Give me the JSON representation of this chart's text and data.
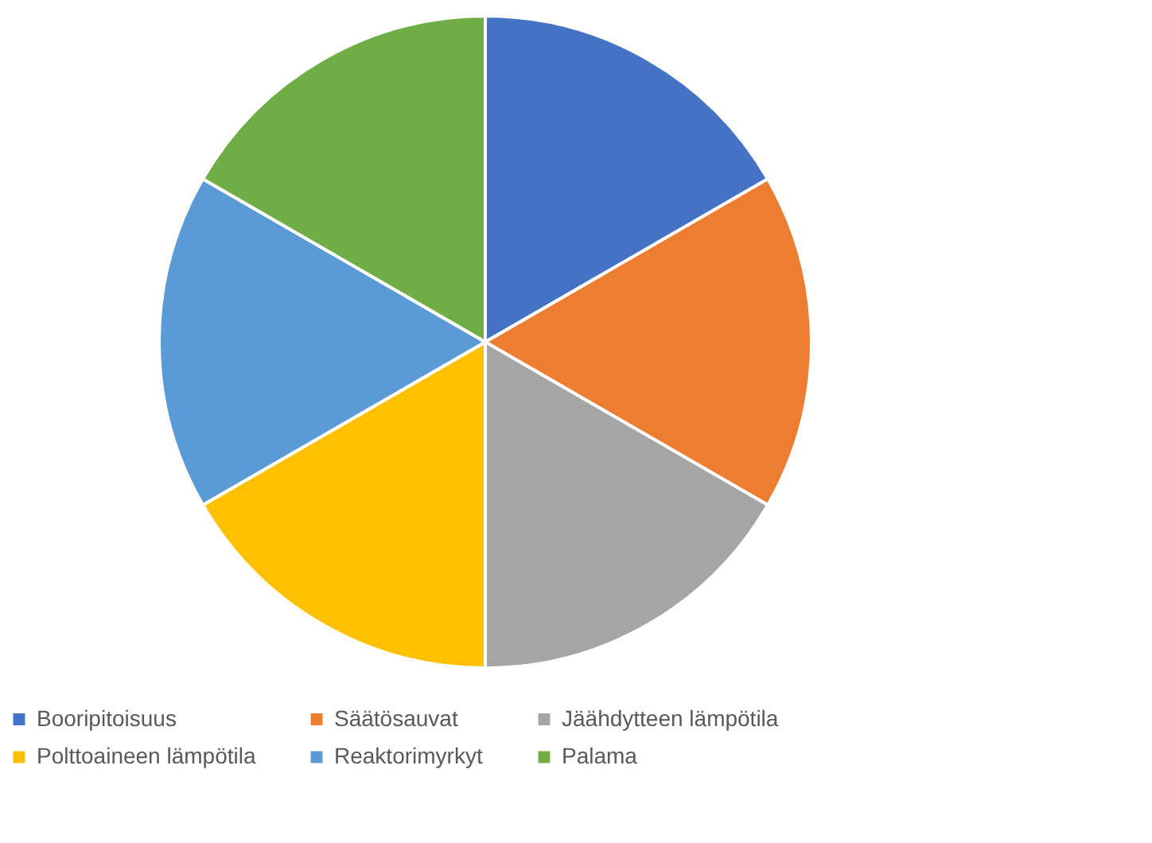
{
  "chart_data": {
    "type": "pie",
    "categories": [
      "Booripitoisuus",
      "Säätösauvat",
      "Jäähdytteen lämpötila",
      "Polttoaineen lämpötila",
      "Reaktorimyrkyt",
      "Palama"
    ],
    "values": [
      16.67,
      16.67,
      16.67,
      16.67,
      16.67,
      16.67
    ],
    "colors": [
      "#4472c4",
      "#ed7d31",
      "#a5a5a5",
      "#ffc000",
      "#5b9bd5",
      "#70ad47"
    ],
    "legend": "bottom"
  }
}
